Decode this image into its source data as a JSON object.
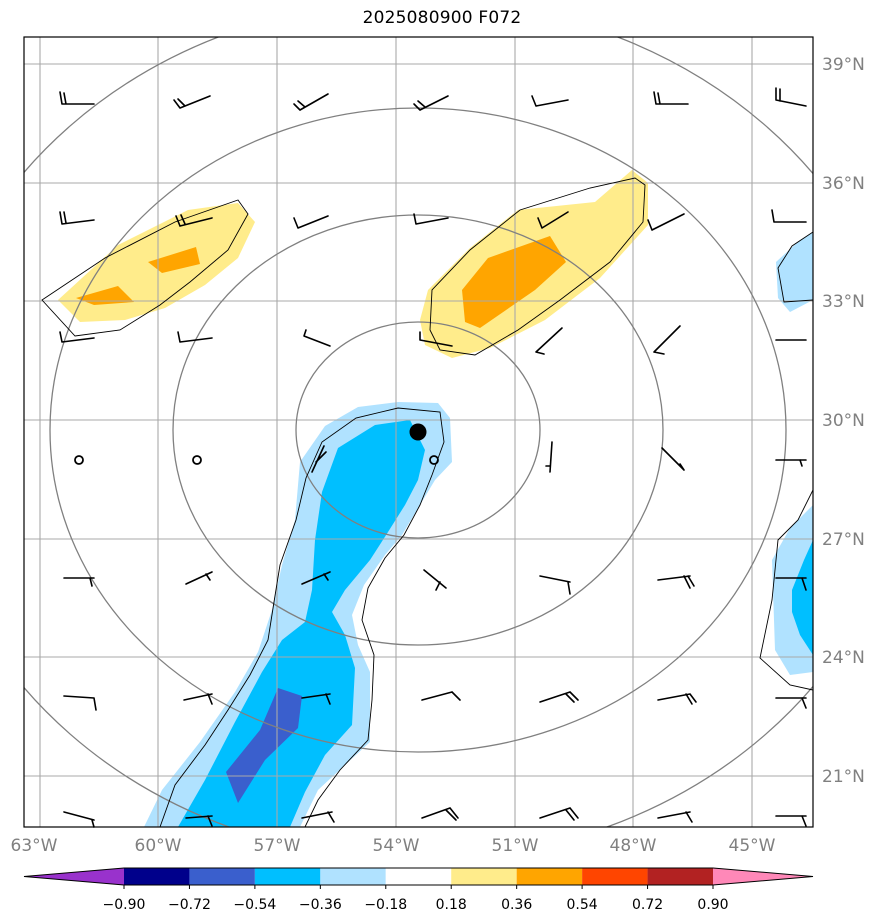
{
  "title": "2025080900 F072",
  "lon_labels": [
    "63°W",
    "60°W",
    "57°W",
    "54°W",
    "51°W",
    "48°W",
    "45°W"
  ],
  "lat_labels": [
    "39°N",
    "36°N",
    "33°N",
    "30°N",
    "27°N",
    "24°N",
    "21°N"
  ],
  "colorbar": {
    "tick_labels": [
      "−0.90",
      "−0.72",
      "−0.54",
      "−0.36",
      "−0.18",
      "0.18",
      "0.36",
      "0.54",
      "0.72",
      "0.90"
    ],
    "colors": [
      "#9932cc",
      "#00008b",
      "#3a5fcd",
      "#00bfff",
      "#b0e2ff",
      "#ffffff",
      "#ffec8b",
      "#ffa500",
      "#ff4500",
      "#b22222",
      "#ff88b8"
    ]
  },
  "storm_center": {
    "lon": -53.5,
    "lat": 29.7
  },
  "range_rings": "concentric gray circles around storm center"
}
